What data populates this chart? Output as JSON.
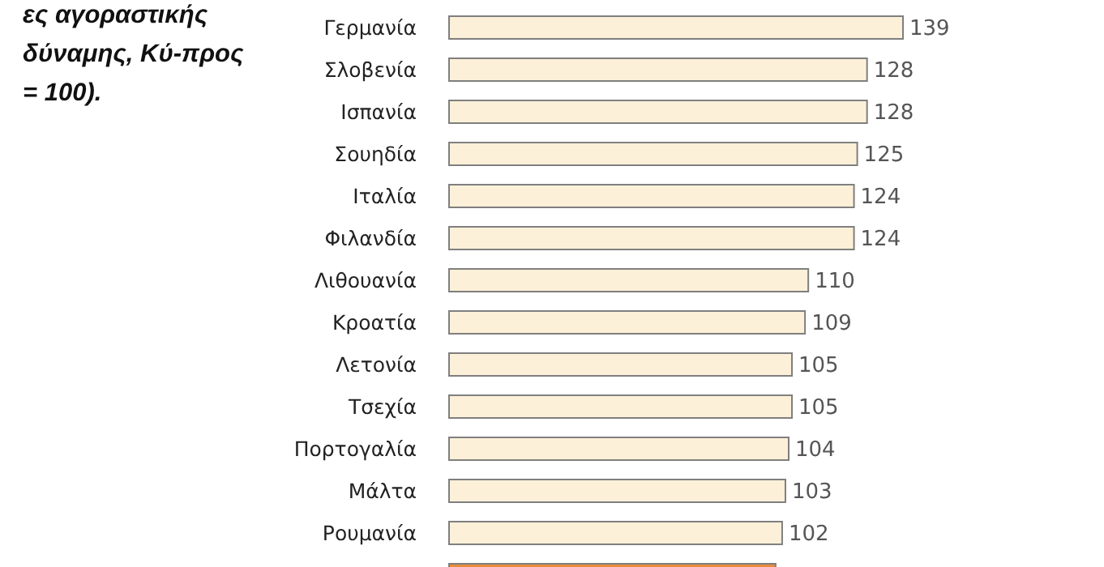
{
  "chart_data": {
    "type": "bar",
    "orientation": "horizontal",
    "title": "ες αγοραστικής δύναμης, Κύ-προς = 100).",
    "categories": [
      "Γερμανία",
      "Σλοβενία",
      "Ισπανία",
      "Σουηδία",
      "Ιταλία",
      "Φιλανδία",
      "Λιθουανία",
      "Κροατία",
      "Λετονία",
      "Τσεχία",
      "Πορτογαλία",
      "Μάλτα",
      "Ρουμανία",
      null
    ],
    "values": [
      139,
      128,
      128,
      125,
      124,
      124,
      110,
      109,
      105,
      105,
      104,
      103,
      102,
      100
    ],
    "value_labels": [
      "139",
      "128",
      "128",
      "125",
      "124",
      "124",
      "110",
      "109",
      "105",
      "105",
      "104",
      "103",
      "102",
      null
    ],
    "colors": [
      "#fdf0d9",
      "#fdf0d9",
      "#fdf0d9",
      "#fdf0d9",
      "#fdf0d9",
      "#fdf0d9",
      "#fdf0d9",
      "#fdf0d9",
      "#fdf0d9",
      "#fdf0d9",
      "#fdf0d9",
      "#fdf0d9",
      "#fdf0d9",
      "#e98b3c"
    ]
  }
}
